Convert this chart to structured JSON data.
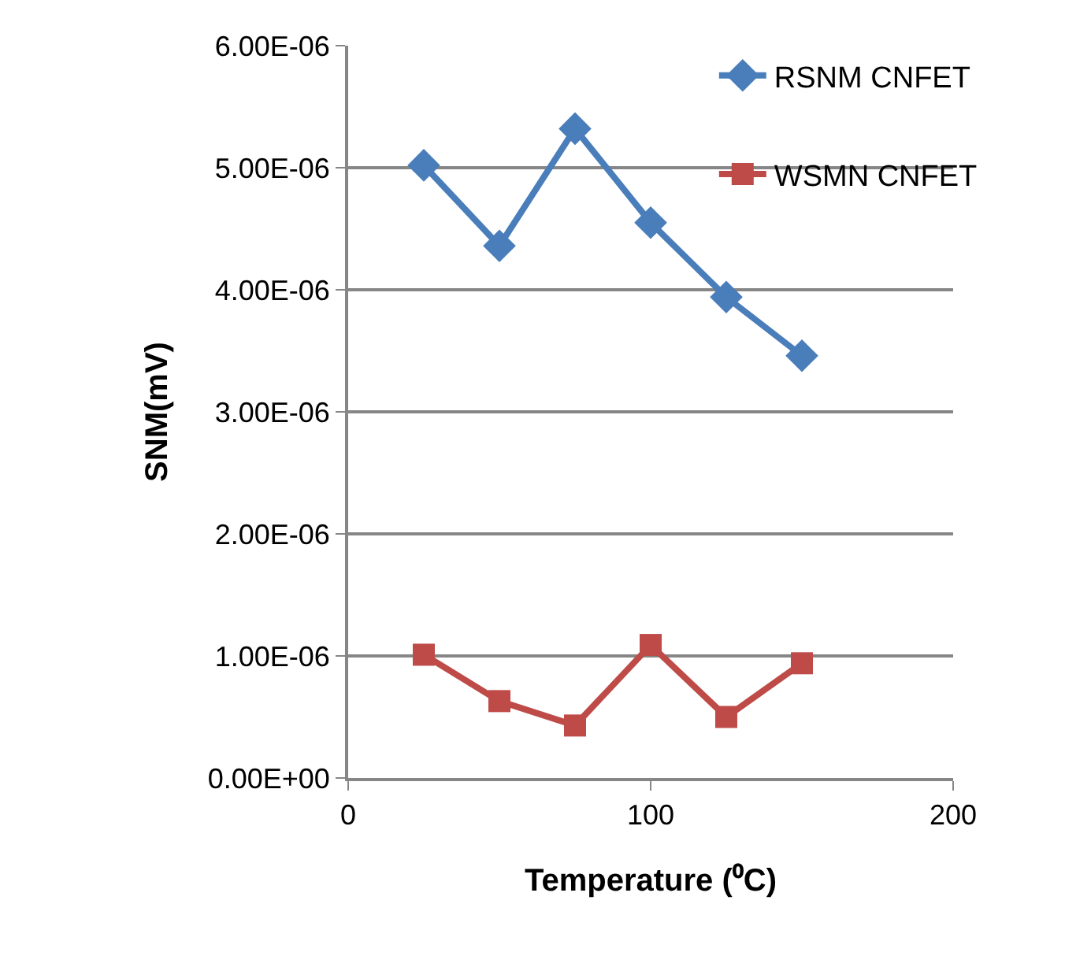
{
  "chart_data": {
    "type": "line",
    "xlabel": "Temperature (⁰C)",
    "ylabel": "SNM(mV)",
    "x": [
      25,
      50,
      75,
      100,
      125,
      150
    ],
    "series": [
      {
        "name": "RSNM CNFET",
        "color": "#4a7ebb",
        "marker": "diamond",
        "values": [
          5.02e-06,
          4.36e-06,
          5.32e-06,
          4.55e-06,
          3.94e-06,
          3.46e-06
        ]
      },
      {
        "name": "WSMN CNFET",
        "color": "#be4b48",
        "marker": "square",
        "values": [
          1.01e-06,
          6.3e-07,
          4.3e-07,
          1.09e-06,
          5e-07,
          9.4e-07
        ]
      }
    ],
    "xlim": [
      0,
      200
    ],
    "xticks": [
      0,
      100,
      200
    ],
    "ylim": [
      0,
      6e-06
    ],
    "yticks": [
      {
        "value": 0,
        "label": "0.00E+00"
      },
      {
        "value": 1e-06,
        "label": "1.00E-06"
      },
      {
        "value": 2e-06,
        "label": "2.00E-06"
      },
      {
        "value": 3e-06,
        "label": "3.00E-06"
      },
      {
        "value": 4e-06,
        "label": "4.00E-06"
      },
      {
        "value": 5e-06,
        "label": "5.00E-06"
      },
      {
        "value": 6e-06,
        "label": "6.00E-06"
      }
    ],
    "grid": "y",
    "legend": "top right"
  }
}
